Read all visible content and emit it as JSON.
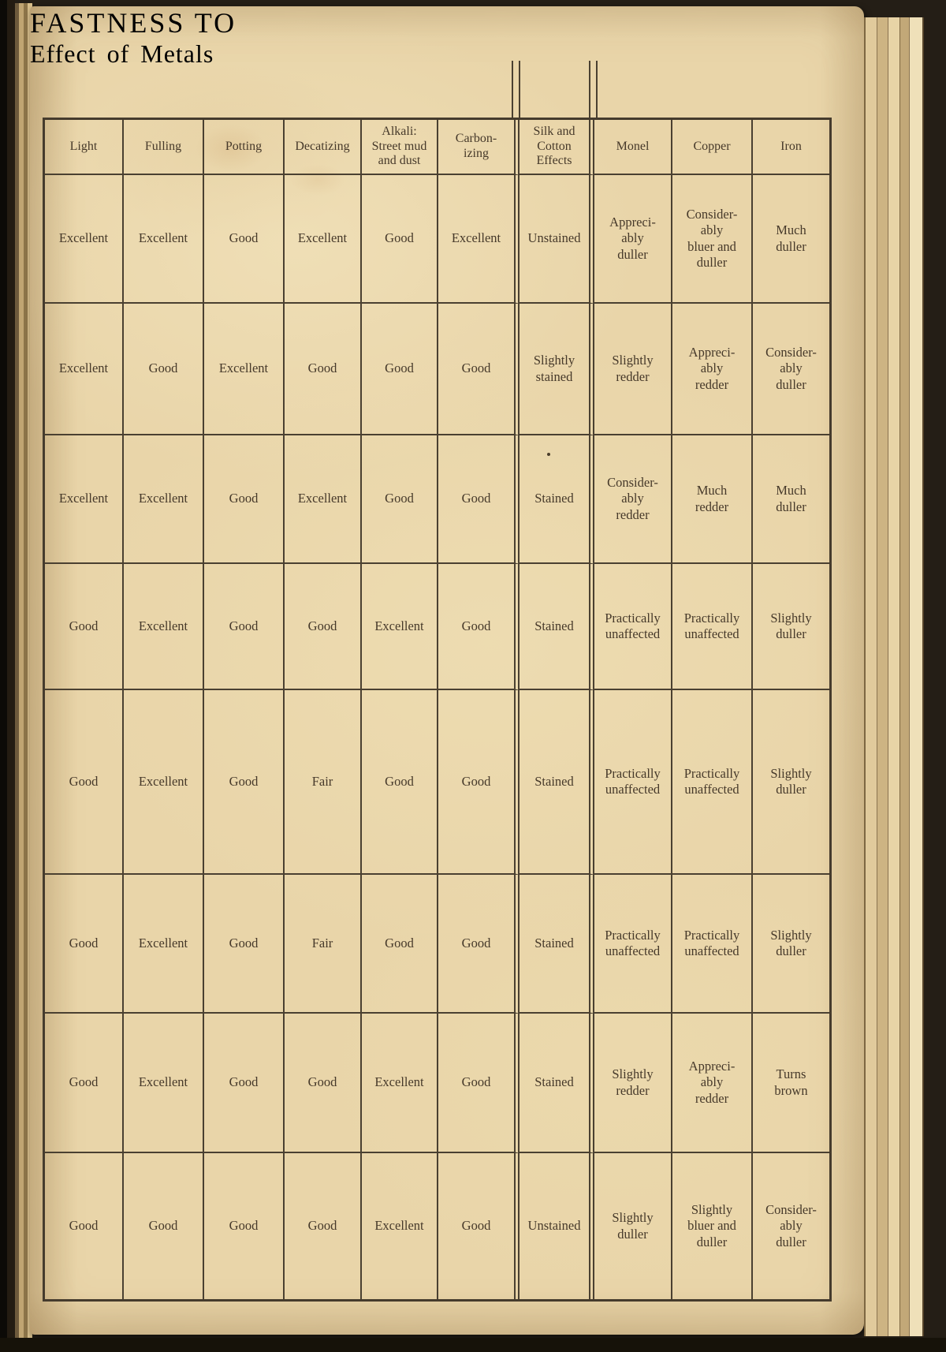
{
  "page": {
    "left_title": "FASTNESS TO",
    "right_title": "Effect of Metals"
  },
  "table": {
    "columns": [
      "Light",
      "Fulling",
      "Potting",
      "Decatizing",
      "Alkali:\nStreet mud\nand dust",
      "Carbon-\nizing",
      "Silk and\nCotton\nEffects",
      "Monel",
      "Copper",
      "Iron"
    ],
    "rows": [
      [
        "Excellent",
        "Excellent",
        "Good",
        "Excellent",
        "Good",
        "Excellent",
        "Unstained",
        "Appreci-\nably\nduller",
        "Consider-\nably\nbluer and\nduller",
        "Much\nduller"
      ],
      [
        "Excellent",
        "Good",
        "Excellent",
        "Good",
        "Good",
        "Good",
        "Slightly\nstained",
        "Slightly\nredder",
        "Appreci-\nably\nredder",
        "Consider-\nably\nduller"
      ],
      [
        "Excellent",
        "Excellent",
        "Good",
        "Excellent",
        "Good",
        "Good",
        "Stained",
        "Consider-\nably\nredder",
        "Much\nredder",
        "Much\nduller"
      ],
      [
        "Good",
        "Excellent",
        "Good",
        "Good",
        "Excellent",
        "Good",
        "Stained",
        "Practically\nunaffected",
        "Practically\nunaffected",
        "Slightly\nduller"
      ],
      [
        "Good",
        "Excellent",
        "Good",
        "Fair",
        "Good",
        "Good",
        "Stained",
        "Practically\nunaffected",
        "Practically\nunaffected",
        "Slightly\nduller"
      ],
      [
        "Good",
        "Excellent",
        "Good",
        "Fair",
        "Good",
        "Good",
        "Stained",
        "Practically\nunaffected",
        "Practically\nunaffected",
        "Slightly\nduller"
      ],
      [
        "Good",
        "Excellent",
        "Good",
        "Good",
        "Excellent",
        "Good",
        "Stained",
        "Slightly\nredder",
        "Appreci-\nably\nredder",
        "Turns\nbrown"
      ],
      [
        "Good",
        "Good",
        "Good",
        "Good",
        "Excellent",
        "Good",
        "Unstained",
        "Slightly\nduller",
        "Slightly\nbluer and\nduller",
        "Consider-\nably\nduller"
      ]
    ]
  },
  "colors": {
    "paper": "#e9d5a9",
    "ink": "#46392a",
    "rule": "#4a4031",
    "cover": "#241e16"
  }
}
